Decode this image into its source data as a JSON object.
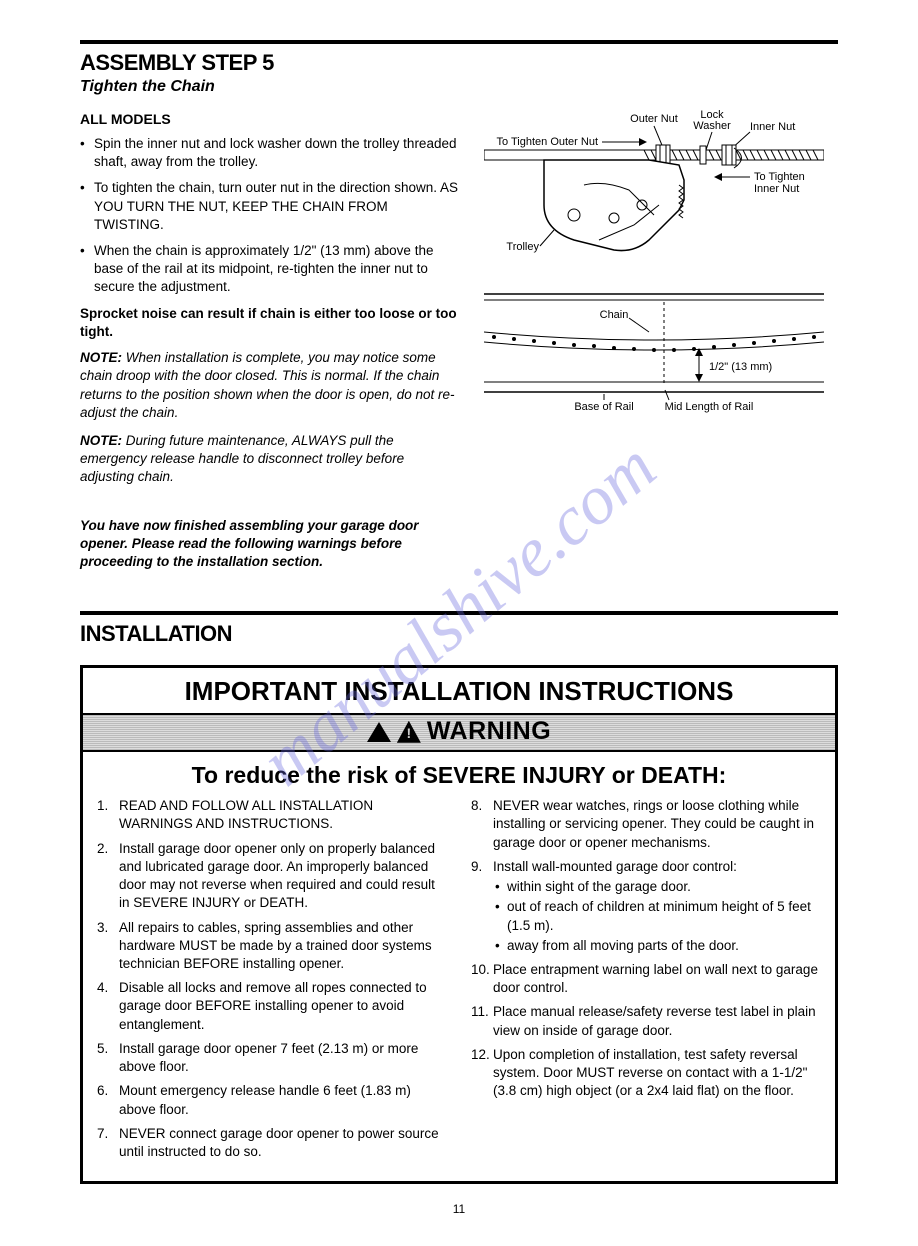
{
  "watermark": "manualshive.com",
  "step": {
    "title": "ASSEMBLY STEP 5",
    "subtitle": "Tighten the Chain",
    "all_models": "ALL MODELS",
    "bullets": [
      "Spin the inner nut and lock washer down the trolley threaded shaft, away from the trolley.",
      "To tighten the chain, turn outer nut in the direction shown. AS YOU TURN THE NUT, KEEP THE CHAIN FROM TWISTING.",
      "When the chain is approximately 1/2\" (13 mm) above the base of the rail at its midpoint, re-tighten the inner nut to secure the adjustment."
    ],
    "sprocket_warn": "Sprocket noise can result if chain is either too loose or too tight.",
    "note1_label": "NOTE:",
    "note1": "When installation is complete, you may notice some chain droop with the door closed. This is normal. If the chain returns to the position shown when the door is open, do not re-adjust the chain.",
    "note2_label": "NOTE:",
    "note2": "During future maintenance, ALWAYS pull the emergency release handle to disconnect trolley before adjusting chain.",
    "finish": "You have now finished assembling your garage door opener. Please read the following warnings before proceeding to the installation section."
  },
  "diagram": {
    "labels": {
      "outer_nut": "Outer Nut",
      "lock_washer": "Lock\nWasher",
      "inner_nut": "Inner Nut",
      "to_tighten_outer": "To Tighten Outer Nut",
      "to_tighten_inner": "To Tighten\nInner Nut",
      "trolley": "Trolley",
      "chain": "Chain",
      "gap": "1/2\" (13 mm)",
      "base_of_rail": "Base of Rail",
      "mid_length": "Mid Length of Rail"
    },
    "colors": {
      "stroke": "#000000",
      "fill_light": "#ffffff",
      "fill_gray": "#e0e0e0"
    }
  },
  "install": {
    "heading": "INSTALLATION",
    "box_title": "IMPORTANT INSTALLATION INSTRUCTIONS",
    "warning_word": "WARNING",
    "subhead": "To reduce the risk of SEVERE INJURY or DEATH:",
    "left_items": [
      {
        "n": "1.",
        "t": "READ AND FOLLOW ALL INSTALLATION WARNINGS AND INSTRUCTIONS."
      },
      {
        "n": "2.",
        "t": "Install garage door opener only on properly balanced and lubricated garage door. An improperly balanced door may not reverse when required and could result in SEVERE INJURY or DEATH."
      },
      {
        "n": "3.",
        "t": "All repairs to cables, spring assemblies and other hardware MUST be made by a trained door systems technician BEFORE installing opener."
      },
      {
        "n": "4.",
        "t": "Disable all locks and remove all ropes connected to garage door BEFORE installing opener to avoid entanglement."
      },
      {
        "n": "5.",
        "t": "Install garage door opener 7 feet (2.13 m) or more above floor."
      },
      {
        "n": "6.",
        "t": "Mount emergency release handle 6 feet (1.83 m) above floor."
      },
      {
        "n": "7.",
        "t": "NEVER connect garage door opener to power source until instructed to do so."
      }
    ],
    "right_items": [
      {
        "n": "8.",
        "t": "NEVER wear watches, rings or loose clothing while installing or servicing opener. They could be caught in garage door or opener mechanisms."
      },
      {
        "n": "9.",
        "t": "Install wall-mounted garage door control:",
        "sub": [
          "within sight of the garage door.",
          "out of reach of children at minimum height of 5 feet (1.5 m).",
          "away from all moving parts of the door."
        ]
      },
      {
        "n": "10.",
        "t": "Place entrapment warning label on wall next to garage door control."
      },
      {
        "n": "11.",
        "t": "Place manual release/safety reverse test label in plain view on inside of garage door."
      },
      {
        "n": "12.",
        "t": "Upon completion of installation, test safety reversal system. Door MUST reverse on contact with a 1-1/2\" (3.8 cm) high object (or a 2x4 laid flat) on the floor."
      }
    ]
  },
  "page_number": "11"
}
